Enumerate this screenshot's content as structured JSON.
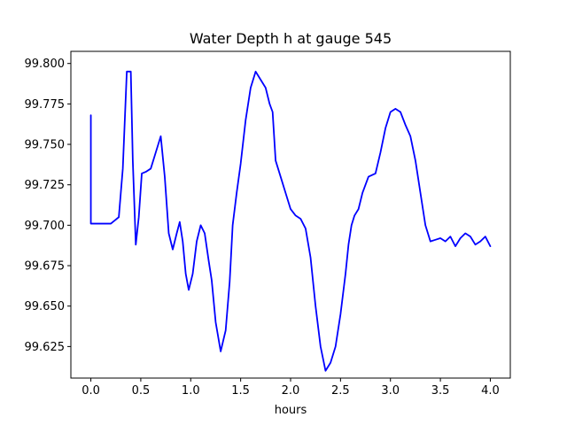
{
  "chart_data": {
    "type": "line",
    "title": "Water Depth h at gauge 545",
    "xlabel": "hours",
    "ylabel": "",
    "xlim": [
      -0.2,
      4.2
    ],
    "ylim": [
      99.6055,
      99.8075
    ],
    "xticks": [
      0.0,
      0.5,
      1.0,
      1.5,
      2.0,
      2.5,
      3.0,
      3.5,
      4.0
    ],
    "xtick_labels": [
      "0.0",
      "0.5",
      "1.0",
      "1.5",
      "2.0",
      "2.5",
      "3.0",
      "3.5",
      "4.0"
    ],
    "yticks": [
      99.625,
      99.65,
      99.675,
      99.7,
      99.725,
      99.75,
      99.775,
      99.8
    ],
    "ytick_labels": [
      "99.625",
      "99.650",
      "99.675",
      "99.700",
      "99.725",
      "99.750",
      "99.775",
      "99.800"
    ],
    "grid": false,
    "series": [
      {
        "name": "",
        "color": "#0000ff",
        "x": [
          0.0,
          0.0,
          0.02,
          0.1,
          0.2,
          0.28,
          0.32,
          0.36,
          0.4,
          0.42,
          0.45,
          0.48,
          0.51,
          0.55,
          0.6,
          0.65,
          0.7,
          0.74,
          0.78,
          0.82,
          0.86,
          0.89,
          0.92,
          0.95,
          0.98,
          1.02,
          1.06,
          1.1,
          1.14,
          1.18,
          1.21,
          1.25,
          1.3,
          1.35,
          1.39,
          1.42,
          1.46,
          1.5,
          1.55,
          1.6,
          1.65,
          1.7,
          1.75,
          1.79,
          1.82,
          1.85,
          1.9,
          1.95,
          2.0,
          2.05,
          2.1,
          2.15,
          2.2,
          2.25,
          2.3,
          2.35,
          2.4,
          2.45,
          2.5,
          2.55,
          2.58,
          2.61,
          2.64,
          2.68,
          2.72,
          2.78,
          2.85,
          2.9,
          2.95,
          3.0,
          3.05,
          3.1,
          3.15,
          3.2,
          3.25,
          3.3,
          3.35,
          3.4,
          3.45,
          3.5,
          3.55,
          3.6,
          3.65,
          3.7,
          3.75,
          3.8,
          3.85,
          3.9,
          3.95,
          4.0
        ],
        "y": [
          99.768,
          99.701,
          99.701,
          99.701,
          99.701,
          99.705,
          99.735,
          99.795,
          99.795,
          99.74,
          99.688,
          99.705,
          99.732,
          99.733,
          99.735,
          99.745,
          99.755,
          99.73,
          99.695,
          99.685,
          99.695,
          99.702,
          99.69,
          99.67,
          99.66,
          99.67,
          99.69,
          99.7,
          99.695,
          99.678,
          99.666,
          99.64,
          99.622,
          99.635,
          99.665,
          99.7,
          99.72,
          99.738,
          99.765,
          99.785,
          99.795,
          99.79,
          99.785,
          99.775,
          99.77,
          99.74,
          99.73,
          99.72,
          99.71,
          99.706,
          99.704,
          99.698,
          99.68,
          99.65,
          99.625,
          99.61,
          99.615,
          99.625,
          99.645,
          99.67,
          99.688,
          99.7,
          99.706,
          99.71,
          99.72,
          99.73,
          99.732,
          99.745,
          99.76,
          99.77,
          99.772,
          99.77,
          99.762,
          99.755,
          99.74,
          99.72,
          99.7,
          99.69,
          99.691,
          99.692,
          99.69,
          99.693,
          99.687,
          99.692,
          99.695,
          99.693,
          99.688,
          99.69,
          99.693,
          99.687
        ]
      }
    ]
  }
}
